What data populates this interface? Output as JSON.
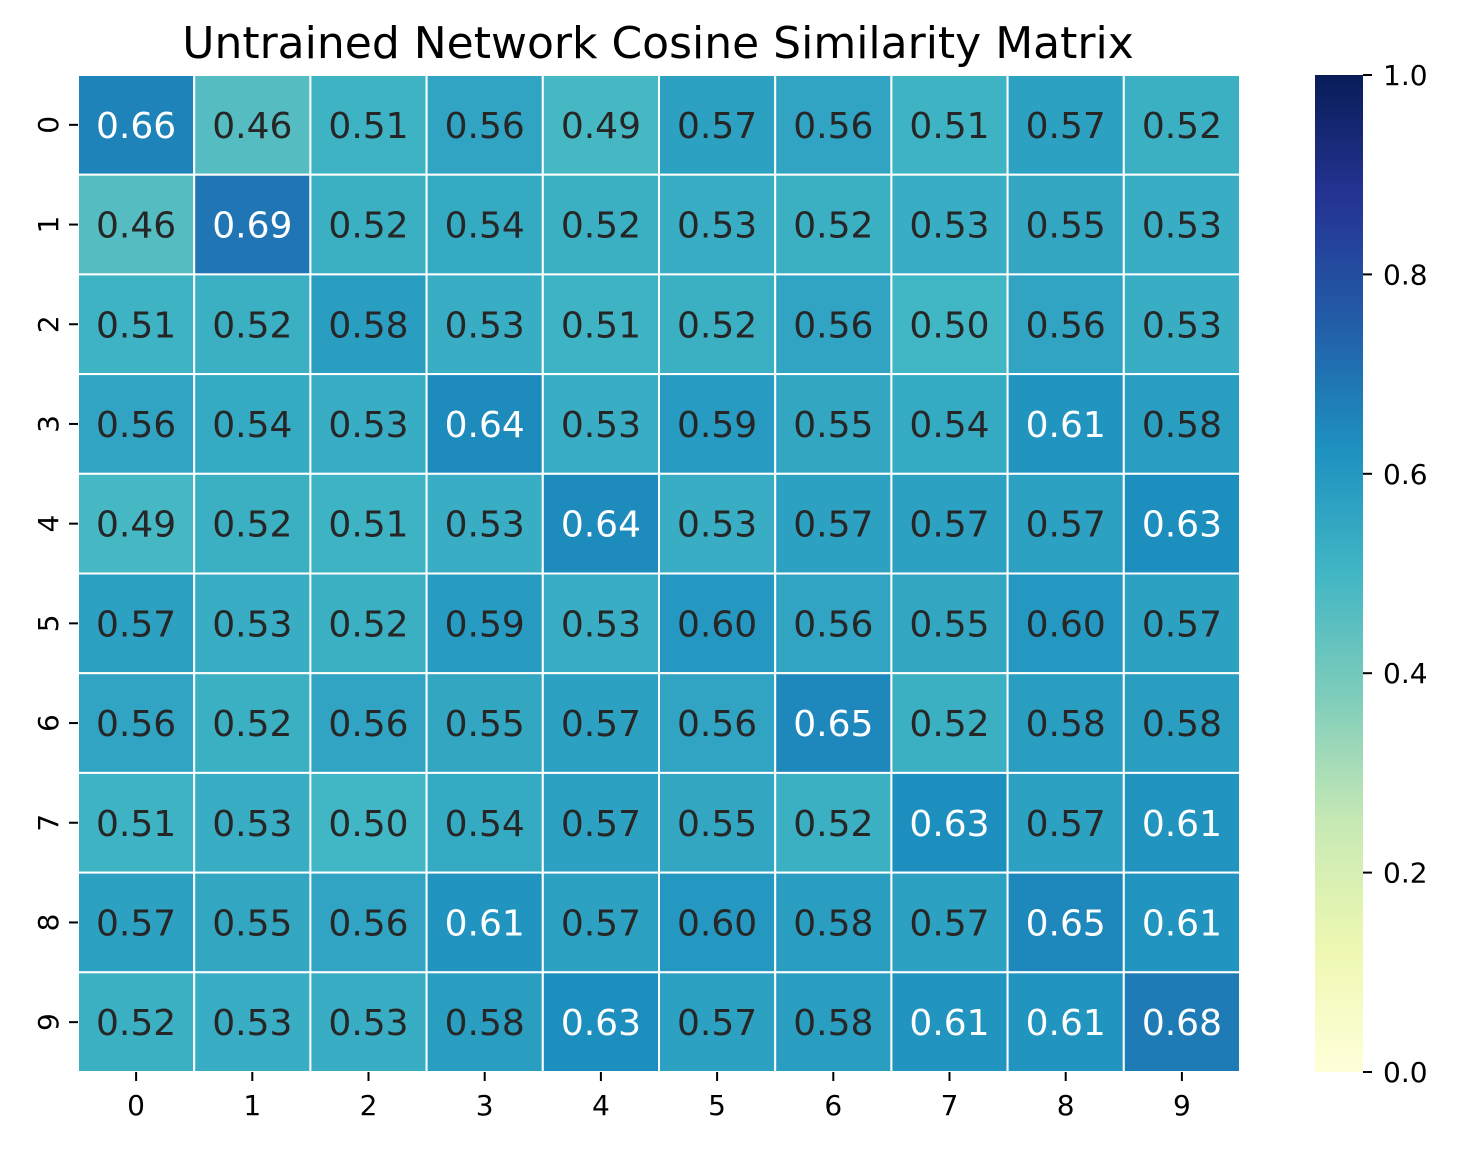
{
  "chart_data": {
    "type": "heatmap",
    "title": "Untrained Network Cosine Similarity Matrix",
    "xlabel": "",
    "ylabel": "",
    "x_categories": [
      "0",
      "1",
      "2",
      "3",
      "4",
      "5",
      "6",
      "7",
      "8",
      "9"
    ],
    "y_categories": [
      "0",
      "1",
      "2",
      "3",
      "4",
      "5",
      "6",
      "7",
      "8",
      "9"
    ],
    "values": [
      [
        0.66,
        0.46,
        0.51,
        0.56,
        0.49,
        0.57,
        0.56,
        0.51,
        0.57,
        0.52
      ],
      [
        0.46,
        0.69,
        0.52,
        0.54,
        0.52,
        0.53,
        0.52,
        0.53,
        0.55,
        0.53
      ],
      [
        0.51,
        0.52,
        0.58,
        0.53,
        0.51,
        0.52,
        0.56,
        0.5,
        0.56,
        0.53
      ],
      [
        0.56,
        0.54,
        0.53,
        0.64,
        0.53,
        0.59,
        0.55,
        0.54,
        0.61,
        0.58
      ],
      [
        0.49,
        0.52,
        0.51,
        0.53,
        0.64,
        0.53,
        0.57,
        0.57,
        0.57,
        0.63
      ],
      [
        0.57,
        0.53,
        0.52,
        0.59,
        0.53,
        0.6,
        0.56,
        0.55,
        0.6,
        0.57
      ],
      [
        0.56,
        0.52,
        0.56,
        0.55,
        0.57,
        0.56,
        0.65,
        0.52,
        0.58,
        0.58
      ],
      [
        0.51,
        0.53,
        0.5,
        0.54,
        0.57,
        0.55,
        0.52,
        0.63,
        0.57,
        0.61
      ],
      [
        0.57,
        0.55,
        0.56,
        0.61,
        0.57,
        0.6,
        0.58,
        0.57,
        0.65,
        0.61
      ],
      [
        0.52,
        0.53,
        0.53,
        0.58,
        0.63,
        0.57,
        0.58,
        0.61,
        0.61,
        0.68
      ]
    ],
    "value_format_decimals": 2,
    "colormap": "YlGnBu",
    "colormap_stops": [
      "#ffffd9",
      "#edf8b1",
      "#c7e9b4",
      "#7fcdbb",
      "#41b6c4",
      "#1d91c0",
      "#225ea8",
      "#253494",
      "#081d58"
    ],
    "vmin": 0.0,
    "vmax": 1.0,
    "colorbar_ticks": [
      "0.0",
      "0.2",
      "0.4",
      "0.6",
      "0.8",
      "1.0"
    ],
    "cell_border_color": "#ffffff",
    "annotation_dark_text_color": "#262626",
    "annotation_light_text_color": "#ffffff",
    "grid": false,
    "legend": "colorbar-right"
  }
}
